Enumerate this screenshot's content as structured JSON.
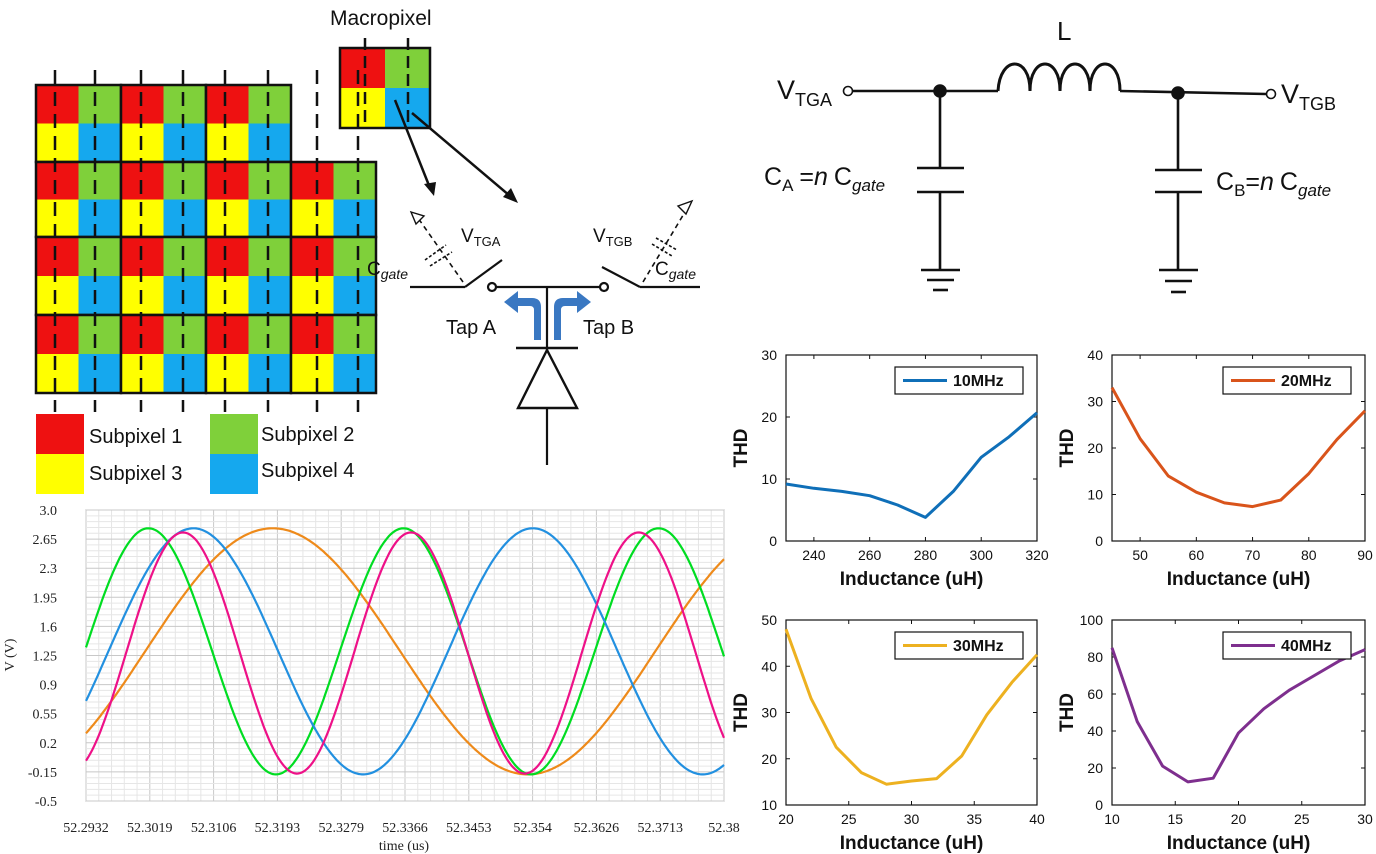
{
  "macropixel": {
    "title": "Macropixel",
    "legend": [
      {
        "label": "Subpixel 1",
        "color": "#ee1111"
      },
      {
        "label": "Subpixel 2",
        "color": "#7fd03a"
      },
      {
        "label": "Subpixel 3",
        "color": "#ffff00"
      },
      {
        "label": "Subpixel 4",
        "color": "#15a8ee"
      }
    ]
  },
  "tap_circuit": {
    "cgate": "C",
    "cgate_sub": "gate",
    "vtga": "V",
    "vtga_sub": "TGA",
    "vtgb": "V",
    "vtgb_sub": "TGB",
    "tap_a": "Tap A",
    "tap_b": "Tap B",
    "arrow_color": "#3a78c2"
  },
  "lc_circuit": {
    "inductor": "L",
    "vtga": "V",
    "vtga_sub": "TGA",
    "vtgb": "V",
    "vtgb_sub": "TGB",
    "ca_main": "C",
    "ca_sub": "A",
    "ca_eq": "=",
    "ca_n": "n",
    "ca_c": "C",
    "ca_gate": "gate",
    "cb_main": "C",
    "cb_sub": "B",
    "cb_eq": "=",
    "cb_n": "n",
    "cb_c": "C",
    "cb_gate": "gate"
  },
  "chart_data": [
    {
      "type": "line",
      "xlabel": "time (us)",
      "ylabel": "V (V)",
      "x_ticks": [
        "52.2932",
        "52.3019",
        "52.3106",
        "52.3193",
        "52.3279",
        "52.3366",
        "52.3453",
        "52.354",
        "52.3626",
        "52.3713",
        "52.38"
      ],
      "y_ticks": [
        "3.0",
        "2.65",
        "2.3",
        "1.95",
        "1.6",
        "1.25",
        "0.9",
        "0.55",
        "0.2",
        "-0.15",
        "-0.5"
      ],
      "xlim": [
        52.2932,
        52.38
      ],
      "ylim": [
        -0.5,
        3.0
      ],
      "grid": true,
      "series": [
        {
          "color": "#ee8a1a",
          "period": 0.0694,
          "phase": 52.3186,
          "amp": 1.48,
          "offset": 1.3
        },
        {
          "color": "#00dd22",
          "period": 0.0347,
          "phase": 52.3017,
          "amp": 1.48,
          "offset": 1.3
        },
        {
          "color": "#2290e0",
          "period": 0.0462,
          "phase": 52.3078,
          "amp": 1.48,
          "offset": 1.3
        },
        {
          "color": "#ee1188",
          "period": 0.031,
          "phase": 52.3064,
          "amp": 1.45,
          "offset": 1.28
        }
      ]
    },
    {
      "type": "line",
      "xlabel": "Inductance (uH)",
      "ylabel": "THD",
      "xlim": [
        230,
        320
      ],
      "ylim": [
        0,
        30
      ],
      "x_ticks": [
        240,
        260,
        280,
        300,
        320
      ],
      "y_ticks": [
        0,
        10,
        20,
        30
      ],
      "series": [
        {
          "name": "10MHz",
          "color": "#0f6fb8",
          "x": [
            230,
            240,
            250,
            260,
            270,
            280,
            290,
            300,
            310,
            320
          ],
          "y": [
            9.2,
            8.5,
            8.0,
            7.3,
            5.8,
            3.8,
            8.0,
            13.5,
            16.8,
            20.7
          ]
        }
      ]
    },
    {
      "type": "line",
      "xlabel": "Inductance (uH)",
      "ylabel": "THD",
      "xlim": [
        45,
        90
      ],
      "ylim": [
        0,
        40
      ],
      "x_ticks": [
        50,
        60,
        70,
        80,
        90
      ],
      "y_ticks": [
        0,
        10,
        20,
        30,
        40
      ],
      "series": [
        {
          "name": "20MHz",
          "color": "#d9541b",
          "x": [
            45,
            50,
            55,
            60,
            65,
            70,
            75,
            80,
            85,
            90
          ],
          "y": [
            33.0,
            22.0,
            14.0,
            10.5,
            8.2,
            7.4,
            8.8,
            14.5,
            21.8,
            28.0
          ]
        }
      ]
    },
    {
      "type": "line",
      "xlabel": "Inductance (uH)",
      "ylabel": "THD",
      "xlim": [
        20,
        40
      ],
      "ylim": [
        10,
        50
      ],
      "x_ticks": [
        20,
        25,
        30,
        35,
        40
      ],
      "y_ticks": [
        10,
        20,
        30,
        40,
        50
      ],
      "series": [
        {
          "name": "30MHz",
          "color": "#edb120",
          "x": [
            20,
            22,
            24,
            26,
            28,
            30,
            32,
            34,
            36,
            38,
            40
          ],
          "y": [
            48.0,
            33.0,
            22.5,
            17.0,
            14.5,
            15.2,
            15.7,
            20.6,
            29.5,
            36.5,
            42.5
          ]
        }
      ]
    },
    {
      "type": "line",
      "xlabel": "Inductance (uH)",
      "ylabel": "THD",
      "xlim": [
        10,
        30
      ],
      "ylim": [
        0,
        100
      ],
      "x_ticks": [
        10,
        15,
        20,
        25,
        30
      ],
      "y_ticks": [
        0,
        20,
        40,
        60,
        80,
        100
      ],
      "series": [
        {
          "name": "40MHz",
          "color": "#7e2f8e",
          "x": [
            10,
            12,
            14,
            16,
            18,
            20,
            22,
            24,
            26,
            28,
            30
          ],
          "y": [
            85.0,
            45.0,
            21.0,
            12.5,
            14.5,
            39.0,
            52.0,
            62.0,
            70.0,
            78.0,
            84.0
          ]
        }
      ]
    }
  ]
}
